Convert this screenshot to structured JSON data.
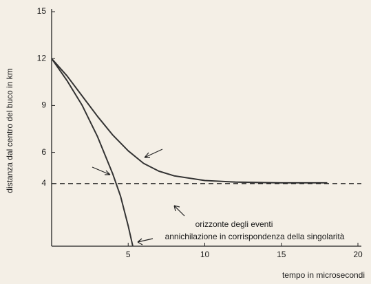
{
  "chart_data": {
    "type": "line",
    "xlabel": "tempo in microsecondi",
    "ylabel": "distanza dal centro del buco in km",
    "xlim": [
      0,
      20
    ],
    "ylim": [
      0,
      15
    ],
    "xticks": [
      5,
      10,
      15,
      20
    ],
    "yticks": [
      4,
      6,
      9,
      12,
      15
    ],
    "hline": 4,
    "series": [
      {
        "color": "#333333",
        "x": [
          0,
          1,
          2,
          3,
          4,
          5,
          6,
          7,
          8,
          10,
          12,
          15,
          18
        ],
        "values": [
          12,
          10.9,
          9.6,
          8.3,
          7.1,
          6.1,
          5.3,
          4.8,
          4.5,
          4.2,
          4.1,
          4.05,
          4.05
        ]
      },
      {
        "color": "#333333",
        "x": [
          0,
          1,
          2,
          3,
          4,
          4.5,
          5,
          5.3
        ],
        "values": [
          12,
          10.6,
          9.0,
          7.0,
          4.6,
          3.2,
          1.3,
          0
        ]
      }
    ],
    "annotations": [
      "orizzonte degli eventi",
      "annichilazione in corrispondenza della singolarità"
    ]
  }
}
